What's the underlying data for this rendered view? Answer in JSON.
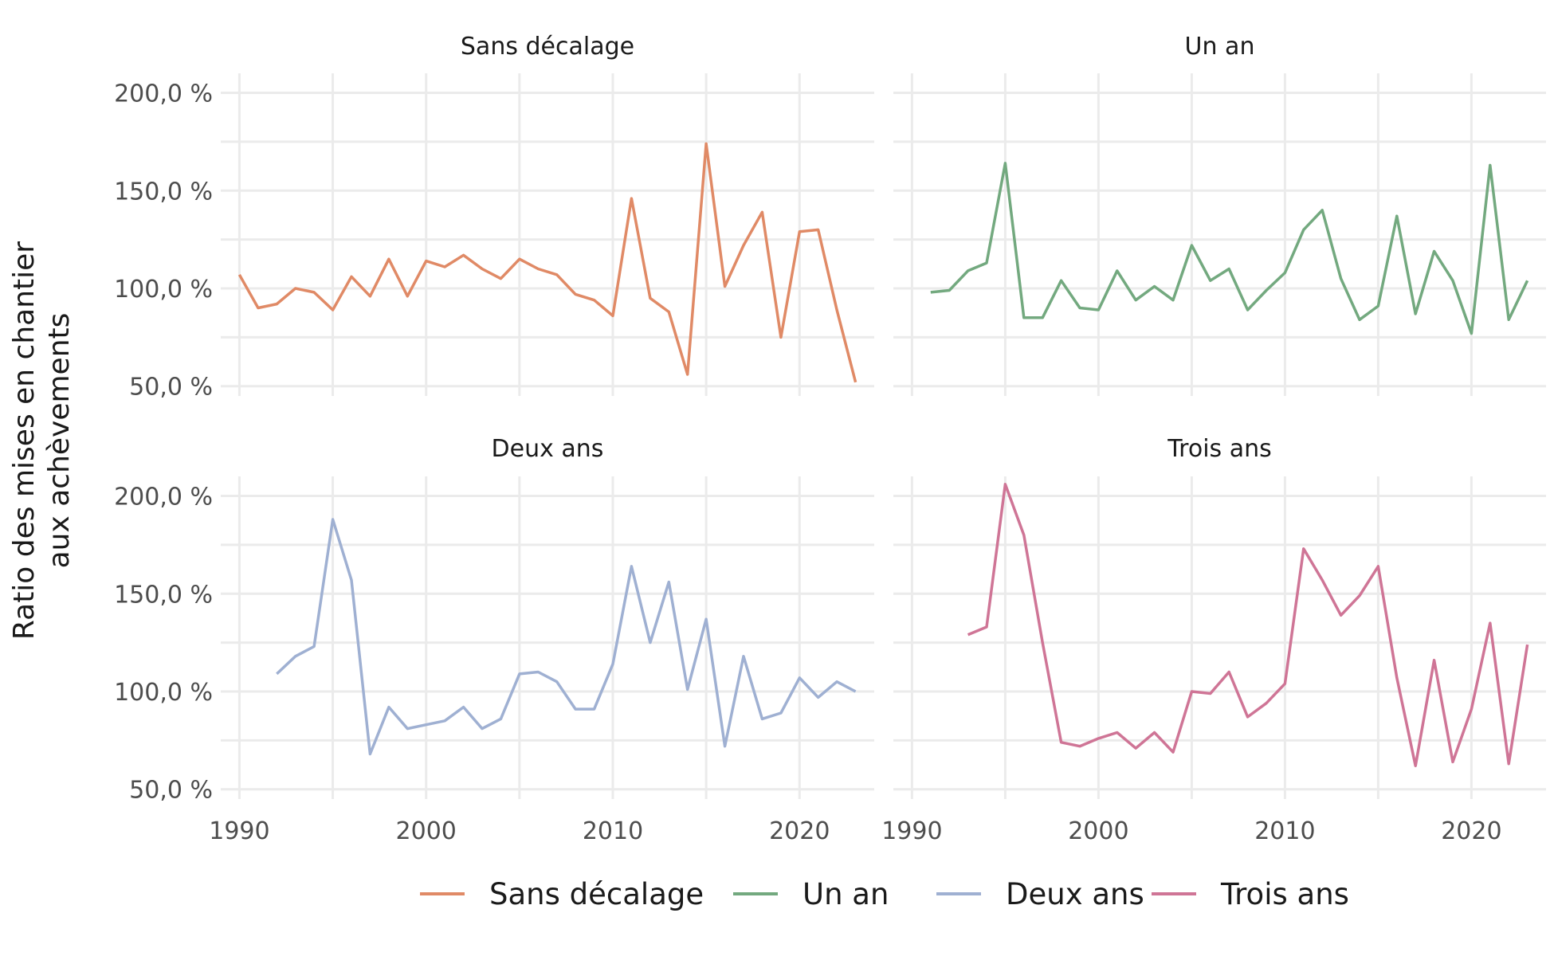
{
  "chart_data": {
    "type": "line",
    "ylabel": "Ratio des mises en chantier aux achèvements",
    "ylabel_lines": [
      "Ratio des mises en chantier",
      "aux achèvements"
    ],
    "xlabel": "",
    "xlim": [
      1989,
      2024
    ],
    "ylim": [
      45,
      210
    ],
    "x_ticks": [
      1990,
      2000,
      2010,
      2020
    ],
    "x_tick_labels": [
      "1990",
      "2000",
      "2010",
      "2020"
    ],
    "y_ticks": [
      50,
      100,
      150,
      200
    ],
    "y_tick_labels": [
      "50,0 %",
      "100,0 %",
      "150,0 %",
      "200,0 %"
    ],
    "grid": true,
    "legend_position": "bottom",
    "colors": {
      "Sans décalage": "#e08a66",
      "Un an": "#73a97f",
      "Deux ans": "#9fb0d2",
      "Trois ans": "#cf7596"
    },
    "panels": [
      {
        "title": "Sans décalage",
        "series": [
          {
            "name": "Sans décalage",
            "x": [
              1990,
              1991,
              1992,
              1993,
              1994,
              1995,
              1996,
              1997,
              1998,
              1999,
              2000,
              2001,
              2002,
              2003,
              2004,
              2005,
              2006,
              2007,
              2008,
              2009,
              2010,
              2011,
              2012,
              2013,
              2014,
              2015,
              2016,
              2017,
              2018,
              2019,
              2020,
              2021,
              2022,
              2023
            ],
            "y": [
              107,
              90,
              92,
              100,
              98,
              89,
              106,
              96,
              115,
              96,
              114,
              111,
              117,
              110,
              105,
              115,
              110,
              107,
              97,
              94,
              86,
              146,
              95,
              88,
              56,
              174,
              101,
              122,
              139,
              75,
              129,
              130,
              89,
              52
            ]
          }
        ]
      },
      {
        "title": "Un an",
        "series": [
          {
            "name": "Un an",
            "x": [
              1991,
              1992,
              1993,
              1994,
              1995,
              1996,
              1997,
              1998,
              1999,
              2000,
              2001,
              2002,
              2003,
              2004,
              2005,
              2006,
              2007,
              2008,
              2009,
              2010,
              2011,
              2012,
              2013,
              2014,
              2015,
              2016,
              2017,
              2018,
              2019,
              2020,
              2021,
              2022,
              2023
            ],
            "y": [
              98,
              99,
              109,
              113,
              164,
              85,
              85,
              104,
              90,
              89,
              109,
              94,
              101,
              94,
              122,
              104,
              110,
              89,
              99,
              108,
              130,
              140,
              105,
              84,
              91,
              137,
              87,
              119,
              104,
              77,
              163,
              84,
              104
            ]
          }
        ]
      },
      {
        "title": "Deux ans",
        "series": [
          {
            "name": "Deux ans",
            "x": [
              1992,
              1993,
              1994,
              1995,
              1996,
              1997,
              1998,
              1999,
              2000,
              2001,
              2002,
              2003,
              2004,
              2005,
              2006,
              2007,
              2008,
              2009,
              2010,
              2011,
              2012,
              2013,
              2014,
              2015,
              2016,
              2017,
              2018,
              2019,
              2020,
              2021,
              2022,
              2023
            ],
            "y": [
              109,
              118,
              123,
              188,
              157,
              68,
              92,
              81,
              83,
              85,
              92,
              81,
              86,
              109,
              110,
              105,
              91,
              91,
              114,
              164,
              125,
              156,
              101,
              137,
              72,
              118,
              86,
              89,
              107,
              97,
              105,
              100
            ]
          }
        ]
      },
      {
        "title": "Trois ans",
        "series": [
          {
            "name": "Trois ans",
            "x": [
              1993,
              1994,
              1995,
              1996,
              1997,
              1998,
              1999,
              2000,
              2001,
              2002,
              2003,
              2004,
              2005,
              2006,
              2007,
              2008,
              2009,
              2010,
              2011,
              2012,
              2013,
              2014,
              2015,
              2016,
              2017,
              2018,
              2019,
              2020,
              2021,
              2022,
              2023
            ],
            "y": [
              129,
              133,
              206,
              180,
              125,
              74,
              72,
              76,
              79,
              71,
              79,
              69,
              100,
              99,
              110,
              87,
              94,
              104,
              173,
              157,
              139,
              149,
              164,
              107,
              62,
              116,
              64,
              91,
              135,
              63,
              124
            ]
          }
        ]
      }
    ]
  }
}
